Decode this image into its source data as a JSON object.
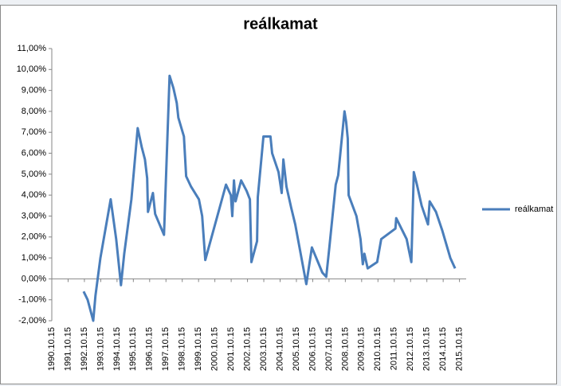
{
  "chart_data": {
    "type": "line",
    "title": "reálkamat",
    "series": [
      {
        "name": "reálkamat",
        "color": "#4a7ebb",
        "x": [
          1992.74,
          1992.99,
          1993.33,
          1993.47,
          1993.77,
          1994.4,
          1994.74,
          1995.03,
          1995.23,
          1995.67,
          1996.06,
          1996.3,
          1996.5,
          1996.64,
          1996.69,
          1996.99,
          1997.13,
          1997.67,
          1998.01,
          1998.25,
          1998.45,
          1998.55,
          1998.89,
          1999.03,
          1999.33,
          1999.81,
          2000.01,
          2000.2,
          2001.47,
          2001.77,
          2001.86,
          2001.96,
          2002.06,
          2002.4,
          2002.74,
          2002.94,
          2003.03,
          2003.38,
          2003.42,
          2003.77,
          2004.2,
          2004.3,
          2004.69,
          2004.89,
          2004.99,
          2005.18,
          2005.47,
          2005.72,
          2006.4,
          2006.74,
          2007.38,
          2007.62,
          2007.81,
          2008.2,
          2008.35,
          2008.74,
          2008.84,
          2008.94,
          2008.99,
          2009.47,
          2009.72,
          2009.86,
          2009.96,
          2010.16,
          2010.74,
          2010.99,
          2011.86,
          2011.91,
          2012.55,
          2012.84,
          2012.99,
          2013.18,
          2013.47,
          2013.86,
          2013.96,
          2014.35,
          2014.74,
          2015.23,
          2015.52
        ],
        "values": [
          -0.6,
          -1.0,
          -2.0,
          -0.8,
          1.0,
          3.8,
          1.9,
          -0.3,
          1.2,
          3.8,
          7.2,
          6.3,
          5.7,
          4.8,
          3.2,
          4.1,
          3.1,
          2.1,
          9.7,
          9.1,
          8.4,
          7.7,
          6.8,
          4.9,
          4.4,
          3.8,
          3.0,
          0.9,
          4.5,
          4.0,
          3.0,
          4.7,
          3.7,
          4.7,
          4.2,
          3.8,
          0.8,
          1.8,
          3.9,
          6.8,
          6.8,
          6.0,
          5.1,
          4.1,
          5.7,
          4.4,
          3.4,
          2.6,
          -0.25,
          1.5,
          0.3,
          0.1,
          1.5,
          4.5,
          4.95,
          8.0,
          7.5,
          6.7,
          4.0,
          3.0,
          1.9,
          0.7,
          1.2,
          0.5,
          0.8,
          1.9,
          2.4,
          2.9,
          1.9,
          0.8,
          5.1,
          4.5,
          3.5,
          2.6,
          3.7,
          3.2,
          2.3,
          1.0,
          0.5
        ]
      }
    ],
    "xlim": [
      1990.79,
      2016.2
    ],
    "xticks": [
      {
        "value": 1990.79,
        "label": "1990.10.15"
      },
      {
        "value": 1991.79,
        "label": "1991.10.15"
      },
      {
        "value": 1992.79,
        "label": "1992.10.15"
      },
      {
        "value": 1993.79,
        "label": "1993.10.15"
      },
      {
        "value": 1994.79,
        "label": "1994.10.15"
      },
      {
        "value": 1995.79,
        "label": "1995.10.15"
      },
      {
        "value": 1996.79,
        "label": "1996.10.15"
      },
      {
        "value": 1997.79,
        "label": "1997.10.15"
      },
      {
        "value": 1998.79,
        "label": "1998.10.15"
      },
      {
        "value": 1999.79,
        "label": "1999.10.15"
      },
      {
        "value": 2000.79,
        "label": "2000.10.15"
      },
      {
        "value": 2001.79,
        "label": "2001.10.15"
      },
      {
        "value": 2002.79,
        "label": "2002.10.15"
      },
      {
        "value": 2003.79,
        "label": "2003.10.15"
      },
      {
        "value": 2004.79,
        "label": "2004.10.15"
      },
      {
        "value": 2005.79,
        "label": "2005.10.15"
      },
      {
        "value": 2006.79,
        "label": "2006.10.15"
      },
      {
        "value": 2007.79,
        "label": "2007.10.15"
      },
      {
        "value": 2008.79,
        "label": "2008.10.15"
      },
      {
        "value": 2009.79,
        "label": "2009.10.15"
      },
      {
        "value": 2010.79,
        "label": "2010.10.15"
      },
      {
        "value": 2011.79,
        "label": "2011.10.15"
      },
      {
        "value": 2012.79,
        "label": "2012.10.15"
      },
      {
        "value": 2013.79,
        "label": "2013.10.15"
      },
      {
        "value": 2014.79,
        "label": "2014.10.15"
      },
      {
        "value": 2015.79,
        "label": "2015.10.15"
      }
    ],
    "ylim": [
      -2,
      11
    ],
    "yticks": [
      {
        "value": -2,
        "label": "-2,00%"
      },
      {
        "value": -1,
        "label": "-1,00%"
      },
      {
        "value": 0,
        "label": "0,00%"
      },
      {
        "value": 1,
        "label": "1,00%"
      },
      {
        "value": 2,
        "label": "2,00%"
      },
      {
        "value": 3,
        "label": "3,00%"
      },
      {
        "value": 4,
        "label": "4,00%"
      },
      {
        "value": 5,
        "label": "5,00%"
      },
      {
        "value": 6,
        "label": "6,00%"
      },
      {
        "value": 7,
        "label": "7,00%"
      },
      {
        "value": 8,
        "label": "8,00%"
      },
      {
        "value": 9,
        "label": "9,00%"
      },
      {
        "value": 10,
        "label": "10,00%"
      },
      {
        "value": 11,
        "label": "11,00%"
      }
    ],
    "grid": false,
    "legend": "right"
  }
}
